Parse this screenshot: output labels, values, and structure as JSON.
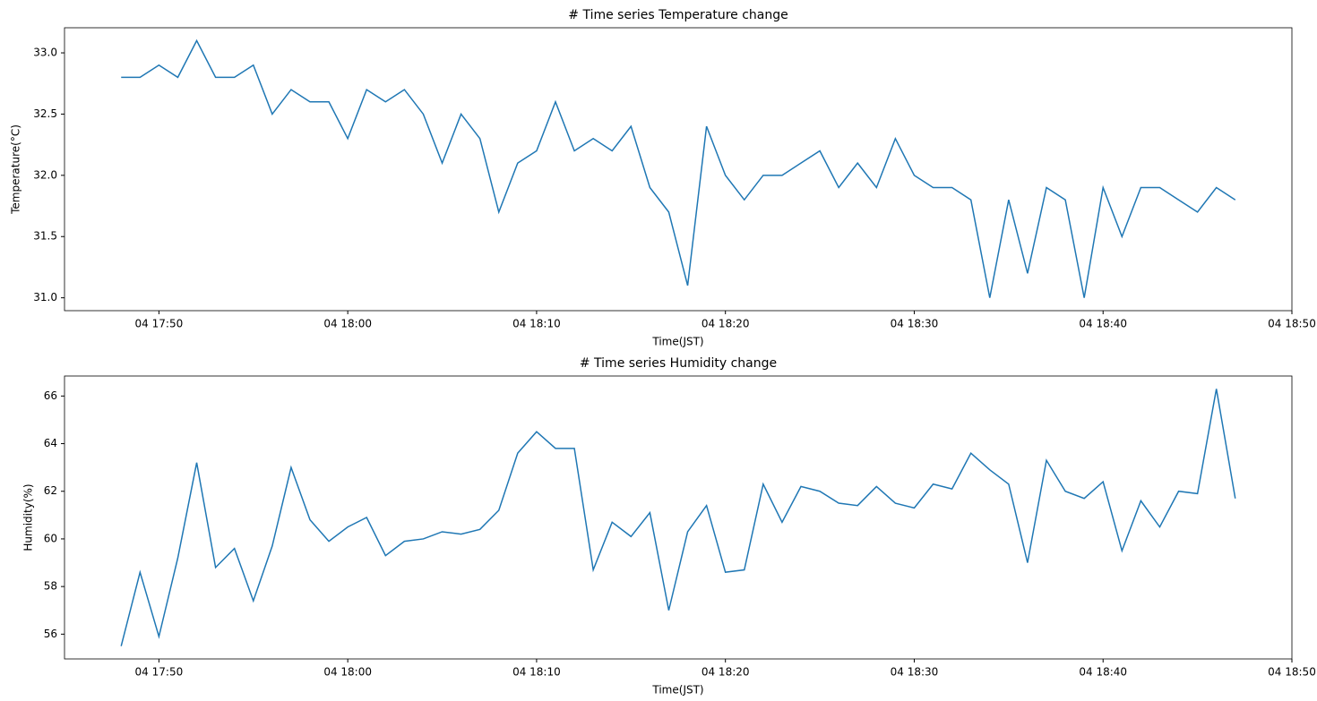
{
  "chart_data": [
    {
      "type": "line",
      "title": "# Time series Temperature change",
      "xlabel": "Time(JST)",
      "ylabel": "Temperature(°C)",
      "color": "#1f77b4",
      "x": [
        "04 17:48",
        "04 17:49",
        "04 17:50",
        "04 17:51",
        "04 17:52",
        "04 17:53",
        "04 17:54",
        "04 17:55",
        "04 17:56",
        "04 17:57",
        "04 17:58",
        "04 17:59",
        "04 18:00",
        "04 18:01",
        "04 18:02",
        "04 18:03",
        "04 18:04",
        "04 18:05",
        "04 18:06",
        "04 18:07",
        "04 18:08",
        "04 18:09",
        "04 18:10",
        "04 18:11",
        "04 18:12",
        "04 18:13",
        "04 18:14",
        "04 18:15",
        "04 18:16",
        "04 18:17",
        "04 18:18",
        "04 18:19",
        "04 18:20",
        "04 18:21",
        "04 18:22",
        "04 18:23",
        "04 18:24",
        "04 18:25",
        "04 18:26",
        "04 18:27",
        "04 18:28",
        "04 18:29",
        "04 18:30",
        "04 18:31",
        "04 18:32",
        "04 18:33",
        "04 18:34",
        "04 18:35",
        "04 18:36",
        "04 18:37",
        "04 18:38",
        "04 18:39",
        "04 18:40",
        "04 18:41",
        "04 18:42",
        "04 18:43",
        "04 18:44",
        "04 18:45",
        "04 18:46",
        "04 18:47"
      ],
      "values": [
        32.8,
        32.8,
        32.9,
        32.8,
        33.1,
        32.8,
        32.8,
        32.9,
        32.5,
        32.7,
        32.6,
        32.6,
        32.3,
        32.7,
        32.6,
        32.7,
        32.5,
        32.1,
        32.5,
        32.3,
        31.7,
        32.1,
        32.2,
        32.6,
        32.2,
        32.3,
        32.2,
        32.4,
        31.9,
        31.7,
        31.1,
        32.4,
        32.0,
        31.8,
        32.0,
        32.0,
        32.1,
        32.2,
        31.9,
        32.1,
        31.9,
        32.3,
        32.0,
        31.9,
        31.9,
        31.8,
        31.0,
        31.8,
        31.2,
        31.9,
        31.8,
        31.0,
        31.9,
        31.5,
        31.9,
        31.9,
        31.8,
        31.7,
        31.9,
        31.8
      ],
      "xlim": [
        "04 17:45",
        "04 18:50"
      ],
      "xticks": [
        "04 17:50",
        "04 18:00",
        "04 18:10",
        "04 18:20",
        "04 18:30",
        "04 18:40",
        "04 18:50"
      ],
      "ylim": [
        30.895,
        33.205
      ],
      "yticks": [
        {
          "value": 31,
          "label": "31.0"
        },
        31.5,
        {
          "value": 32,
          "label": "32.0"
        },
        32.5,
        {
          "value": 33,
          "label": "33.0"
        }
      ]
    },
    {
      "type": "line",
      "title": "# Time series Humidity change",
      "xlabel": "Time(JST)",
      "ylabel": "Humidity(%)",
      "color": "#1f77b4",
      "x": [
        "04 17:48",
        "04 17:49",
        "04 17:50",
        "04 17:51",
        "04 17:52",
        "04 17:53",
        "04 17:54",
        "04 17:55",
        "04 17:56",
        "04 17:57",
        "04 17:58",
        "04 17:59",
        "04 18:00",
        "04 18:01",
        "04 18:02",
        "04 18:03",
        "04 18:04",
        "04 18:05",
        "04 18:06",
        "04 18:07",
        "04 18:08",
        "04 18:09",
        "04 18:10",
        "04 18:11",
        "04 18:12",
        "04 18:13",
        "04 18:14",
        "04 18:15",
        "04 18:16",
        "04 18:17",
        "04 18:18",
        "04 18:19",
        "04 18:20",
        "04 18:21",
        "04 18:22",
        "04 18:23",
        "04 18:24",
        "04 18:25",
        "04 18:26",
        "04 18:27",
        "04 18:28",
        "04 18:29",
        "04 18:30",
        "04 18:31",
        "04 18:32",
        "04 18:33",
        "04 18:34",
        "04 18:35",
        "04 18:36",
        "04 18:37",
        "04 18:38",
        "04 18:39",
        "04 18:40",
        "04 18:41",
        "04 18:42",
        "04 18:43",
        "04 18:44",
        "04 18:45",
        "04 18:46",
        "04 18:47"
      ],
      "values": [
        55.5,
        58.6,
        55.9,
        59.2,
        63.2,
        58.8,
        59.6,
        57.4,
        59.7,
        63.0,
        60.8,
        59.9,
        60.5,
        60.9,
        59.3,
        59.9,
        60.0,
        60.3,
        60.2,
        60.4,
        61.2,
        63.6,
        64.5,
        63.8,
        63.8,
        58.7,
        60.7,
        60.1,
        61.1,
        57.0,
        60.3,
        61.4,
        58.6,
        58.7,
        62.3,
        60.7,
        62.2,
        62.0,
        61.5,
        61.4,
        62.2,
        61.5,
        61.3,
        62.3,
        62.1,
        63.6,
        62.9,
        62.3,
        59.0,
        63.3,
        62.0,
        61.7,
        62.4,
        59.5,
        61.6,
        60.5,
        62.0,
        61.9,
        66.3,
        61.7
      ],
      "xlim": [
        "04 17:45",
        "04 18:50"
      ],
      "xticks": [
        "04 17:50",
        "04 18:00",
        "04 18:10",
        "04 18:20",
        "04 18:30",
        "04 18:40",
        "04 18:50"
      ],
      "ylim": [
        54.96,
        66.84
      ],
      "yticks": [
        56,
        58,
        60,
        62,
        64,
        66
      ]
    }
  ]
}
